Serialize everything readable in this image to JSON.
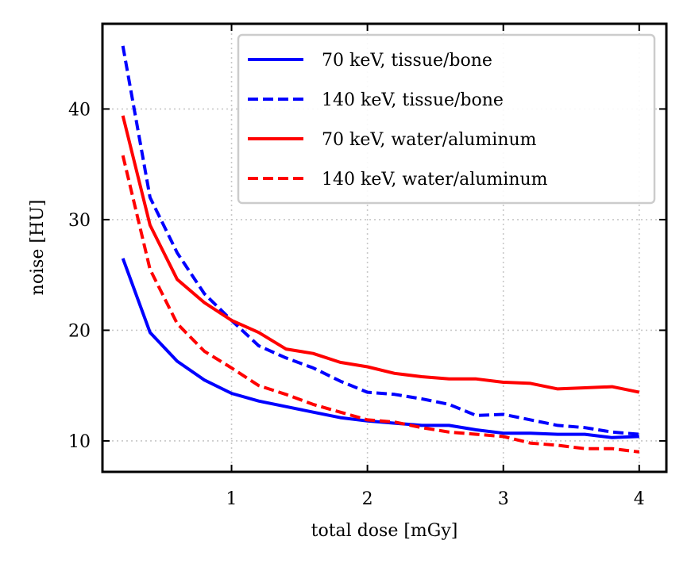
{
  "chart_data": {
    "type": "line",
    "title": "",
    "xlabel": "total dose [mGy]",
    "ylabel": "noise [HU]",
    "xlim": [
      0.05,
      4.2
    ],
    "ylim": [
      7.2,
      47.7
    ],
    "x_ticks": [
      1,
      2,
      3,
      4
    ],
    "y_ticks": [
      10,
      20,
      30,
      40
    ],
    "grid": true,
    "legend_position": "top-right",
    "x": [
      0.2,
      0.4,
      0.6,
      0.8,
      1.0,
      1.2,
      1.4,
      1.6,
      1.8,
      2.0,
      2.2,
      2.4,
      2.6,
      2.8,
      3.0,
      3.2,
      3.4,
      3.6,
      3.8,
      4.0
    ],
    "series": [
      {
        "name": "70 keV, tissue/bone",
        "color": "#0000ff",
        "dash": "solid",
        "values": [
          26.5,
          19.8,
          17.2,
          15.5,
          14.3,
          13.6,
          13.1,
          12.6,
          12.1,
          11.8,
          11.6,
          11.4,
          11.4,
          11.0,
          10.7,
          10.7,
          10.6,
          10.6,
          10.3,
          10.4
        ]
      },
      {
        "name": "140 keV, tissue/bone",
        "color": "#0000ff",
        "dash": "dashed",
        "values": [
          45.7,
          32.0,
          27.0,
          23.3,
          20.9,
          18.6,
          17.5,
          16.6,
          15.4,
          14.4,
          14.2,
          13.8,
          13.3,
          12.3,
          12.4,
          11.9,
          11.4,
          11.2,
          10.8,
          10.6
        ]
      },
      {
        "name": "70 keV, water/aluminum",
        "color": "#ff0000",
        "dash": "solid",
        "values": [
          39.4,
          29.5,
          24.6,
          22.5,
          20.9,
          19.8,
          18.3,
          17.9,
          17.1,
          16.7,
          16.1,
          15.8,
          15.6,
          15.6,
          15.3,
          15.2,
          14.7,
          14.8,
          14.9,
          14.4
        ]
      },
      {
        "name": "140 keV, water/aluminum",
        "color": "#ff0000",
        "dash": "dashed",
        "values": [
          35.8,
          25.5,
          20.6,
          18.1,
          16.6,
          15.0,
          14.2,
          13.3,
          12.6,
          11.9,
          11.7,
          11.2,
          10.8,
          10.6,
          10.4,
          9.8,
          9.6,
          9.3,
          9.3,
          9.0
        ]
      }
    ]
  }
}
